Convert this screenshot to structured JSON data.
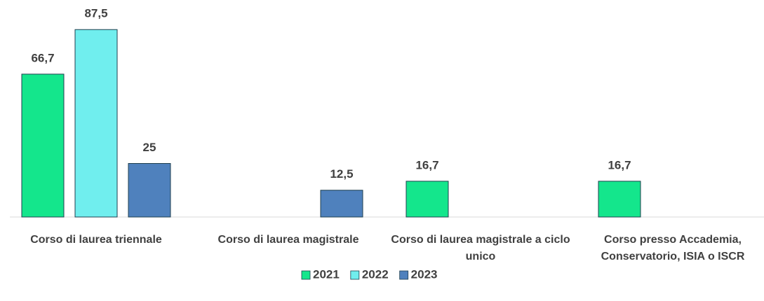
{
  "chart_data": {
    "type": "bar",
    "categories": [
      "Corso di laurea triennale",
      "Corso di laurea magistrale",
      "Corso di laurea magistrale a ciclo unico",
      "Corso presso Accademia, Conservatorio, ISIA o ISCR"
    ],
    "series": [
      {
        "name": "2021",
        "color": "#14e68c",
        "values": [
          66.7,
          null,
          16.7,
          16.7
        ],
        "value_labels": [
          "66,7",
          null,
          "16,7",
          "16,7"
        ]
      },
      {
        "name": "2022",
        "color": "#70eeee",
        "values": [
          87.5,
          null,
          null,
          null
        ],
        "value_labels": [
          "87,5",
          null,
          null,
          null
        ]
      },
      {
        "name": "2023",
        "color": "#4f81bd",
        "values": [
          25,
          12.5,
          null,
          null
        ],
        "value_labels": [
          "25",
          "12,5",
          null,
          null
        ]
      }
    ],
    "ylim": [
      0,
      100
    ],
    "legend": "bottom"
  }
}
